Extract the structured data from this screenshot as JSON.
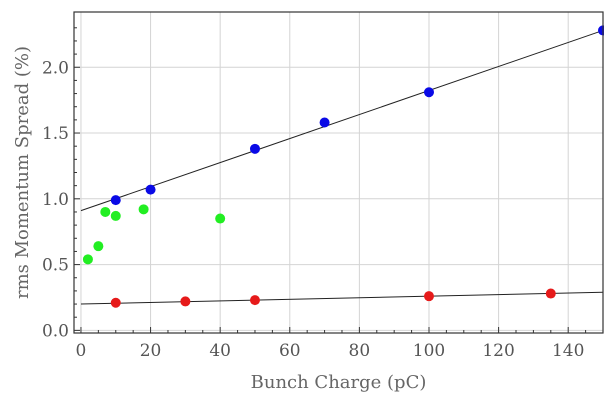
{
  "chart_data": {
    "type": "scatter",
    "title": "",
    "xlabel": "Bunch Charge (pC)",
    "ylabel": "rms Momentum Spread (%)",
    "xlim": [
      -2,
      150
    ],
    "ylim": [
      -0.02,
      2.42
    ],
    "x_ticks": [
      0,
      20,
      40,
      60,
      80,
      100,
      120,
      140
    ],
    "y_ticks": [
      0.0,
      0.5,
      1.0,
      1.5,
      2.0
    ],
    "y_tick_labels": [
      "0.0",
      "0.5",
      "1.0",
      "1.5",
      "2.0"
    ],
    "grid": true,
    "series": [
      {
        "color": "#0a0ae6",
        "points": [
          [
            10,
            0.99
          ],
          [
            20,
            1.07
          ],
          [
            50,
            1.38
          ],
          [
            70,
            1.58
          ],
          [
            100,
            1.81
          ],
          [
            150,
            2.28
          ]
        ]
      },
      {
        "color": "#22ee22",
        "points": [
          [
            2,
            0.54
          ],
          [
            5,
            0.64
          ],
          [
            7,
            0.9
          ],
          [
            10,
            0.87
          ],
          [
            18,
            0.92
          ],
          [
            40,
            0.85
          ]
        ]
      },
      {
        "color": "#e61a1a",
        "points": [
          [
            10,
            0.21
          ],
          [
            30,
            0.22
          ],
          [
            50,
            0.23
          ],
          [
            100,
            0.26
          ],
          [
            135,
            0.28
          ]
        ]
      }
    ],
    "fit_lines": [
      {
        "from": [
          0,
          0.91
        ],
        "to": [
          150,
          2.28
        ]
      },
      {
        "from": [
          0,
          0.2
        ],
        "to": [
          150,
          0.29
        ]
      }
    ]
  }
}
